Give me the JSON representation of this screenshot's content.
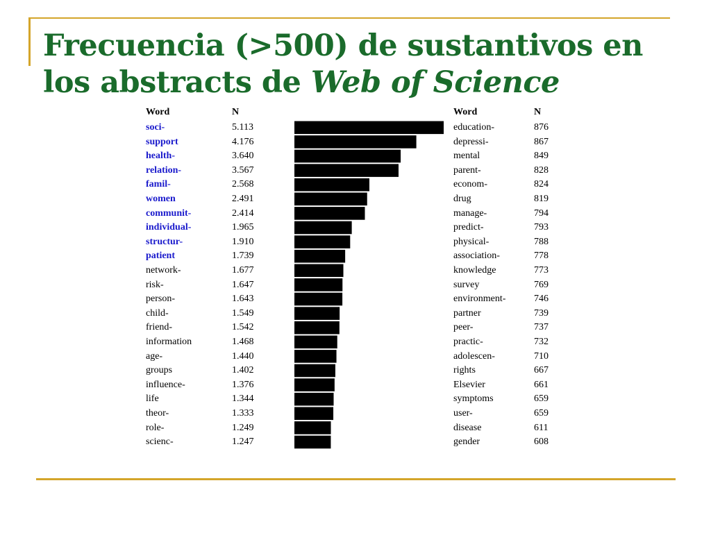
{
  "title": {
    "line1": "Frecuencia (>500) de sustantivos en",
    "line2_prefix": "los abstracts de ",
    "line2_italic": "Web of Science"
  },
  "left_table": {
    "headers": {
      "word": "Word",
      "n": "N"
    },
    "rows": [
      {
        "word": "soci-",
        "n": "5.113",
        "highlight": true
      },
      {
        "word": "support",
        "n": "4.176",
        "highlight": true
      },
      {
        "word": "health-",
        "n": "3.640",
        "highlight": true
      },
      {
        "word": "relation-",
        "n": "3.567",
        "highlight": true
      },
      {
        "word": "famil-",
        "n": "2.568",
        "highlight": true
      },
      {
        "word": "women",
        "n": "2.491",
        "highlight": true
      },
      {
        "word": "communit-",
        "n": "2.414",
        "highlight": true
      },
      {
        "word": "individual-",
        "n": "1.965",
        "highlight": true
      },
      {
        "word": "structur-",
        "n": "1.910",
        "highlight": true
      },
      {
        "word": "patient",
        "n": "1.739",
        "highlight": true
      },
      {
        "word": "network-",
        "n": "1.677",
        "highlight": false
      },
      {
        "word": "risk-",
        "n": "1.647",
        "highlight": false
      },
      {
        "word": "person-",
        "n": "1.643",
        "highlight": false
      },
      {
        "word": "child-",
        "n": "1.549",
        "highlight": false
      },
      {
        "word": "friend-",
        "n": "1.542",
        "highlight": false
      },
      {
        "word": "information",
        "n": "1.468",
        "highlight": false
      },
      {
        "word": "age-",
        "n": "1.440",
        "highlight": false
      },
      {
        "word": "groups",
        "n": "1.402",
        "highlight": false
      },
      {
        "word": "influence-",
        "n": "1.376",
        "highlight": false
      },
      {
        "word": "life",
        "n": "1.344",
        "highlight": false
      },
      {
        "word": "theor-",
        "n": "1.333",
        "highlight": false
      },
      {
        "word": "role-",
        "n": "1.249",
        "highlight": false
      },
      {
        "word": "scienc-",
        "n": "1.247",
        "highlight": false
      }
    ]
  },
  "right_table": {
    "headers": {
      "word": "Word",
      "n": "N"
    },
    "rows": [
      {
        "word": "education-",
        "n": "876"
      },
      {
        "word": "depressi-",
        "n": "867"
      },
      {
        "word": "mental",
        "n": "849"
      },
      {
        "word": "parent-",
        "n": "828"
      },
      {
        "word": "econom-",
        "n": "824"
      },
      {
        "word": "drug",
        "n": "819"
      },
      {
        "word": "manage-",
        "n": "794"
      },
      {
        "word": "predict-",
        "n": "793"
      },
      {
        "word": "physical-",
        "n": "788"
      },
      {
        "word": "association-",
        "n": "778"
      },
      {
        "word": "knowledge",
        "n": "773"
      },
      {
        "word": "survey",
        "n": "769"
      },
      {
        "word": "environment-",
        "n": "746"
      },
      {
        "word": "partner",
        "n": "739"
      },
      {
        "word": "peer-",
        "n": "737"
      },
      {
        "word": "practic-",
        "n": "732"
      },
      {
        "word": "adolescen-",
        "n": "710"
      },
      {
        "word": "rights",
        "n": "667"
      },
      {
        "word": "Elsevier",
        "n": "661"
      },
      {
        "word": "symptoms",
        "n": "659"
      },
      {
        "word": "user-",
        "n": "659"
      },
      {
        "word": "disease",
        "n": "611"
      },
      {
        "word": "gender",
        "n": "608"
      }
    ]
  },
  "chart_data": {
    "type": "bar",
    "orientation": "horizontal",
    "categories": [
      "soci-",
      "support",
      "health-",
      "relation-",
      "famil-",
      "women",
      "communit-",
      "individual-",
      "structur-",
      "patient",
      "network-",
      "risk-",
      "person-",
      "child-",
      "friend-",
      "information",
      "age-",
      "groups",
      "influence-",
      "life",
      "theor-",
      "role-",
      "scienc-"
    ],
    "values": [
      5113,
      4176,
      3640,
      3567,
      2568,
      2491,
      2414,
      1965,
      1910,
      1739,
      1677,
      1647,
      1643,
      1549,
      1542,
      1468,
      1440,
      1402,
      1376,
      1344,
      1333,
      1249,
      1247
    ],
    "xlim": [
      0,
      5113
    ],
    "grid": false,
    "bar_color": "#000000"
  },
  "colors": {
    "title": "#1a6b2b",
    "highlight_word": "#1a1acc",
    "accent_rule": "#d4a52a"
  }
}
